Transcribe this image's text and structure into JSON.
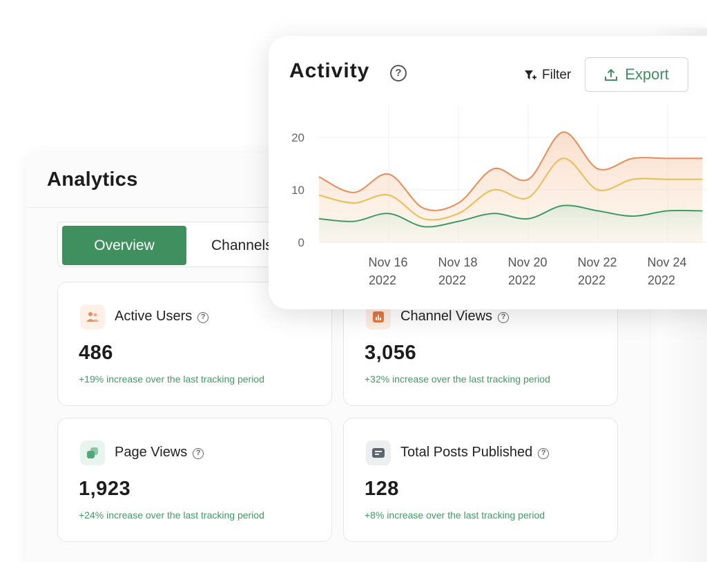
{
  "analytics": {
    "title": "Analytics",
    "tabs": [
      {
        "label": "Overview",
        "active": true
      },
      {
        "label": "Channels",
        "active": false
      }
    ]
  },
  "metrics": [
    {
      "label": "Active Users",
      "value": "486",
      "change": "+19% increase over the last tracking period",
      "icon": "users-icon",
      "icon_color": "#e58f5b",
      "icon_bg": "#fdf0e7"
    },
    {
      "label": "Channel Views",
      "value": "3,056",
      "change": "+32% increase over the last tracking period",
      "icon": "bar-chart-icon",
      "icon_color": "#e8773f",
      "icon_bg": "#fdeee4"
    },
    {
      "label": "Page Views",
      "value": "1,923",
      "change": "+24% increase over the last tracking period",
      "icon": "pages-icon",
      "icon_color": "#52a77a",
      "icon_bg": "#e8f5ee"
    },
    {
      "label": "Total Posts Published",
      "value": "128",
      "change": "+8% increase over the last tracking period",
      "icon": "document-icon",
      "icon_color": "#5c6570",
      "icon_bg": "#eceef0"
    }
  ],
  "activity": {
    "title": "Activity",
    "help": "?",
    "filter_label": "Filter",
    "export_label": "Export"
  },
  "colors": {
    "accent": "#3f8f5f",
    "positive": "#3f9a63",
    "series_top": "#e58c57",
    "series_mid": "#e9bd52",
    "series_low": "#3f9a63"
  },
  "chart_data": {
    "type": "area",
    "x": [
      "Nov 14 2022",
      "Nov 15 2022",
      "Nov 16 2022",
      "Nov 17 2022",
      "Nov 18 2022",
      "Nov 19 2022",
      "Nov 20 2022",
      "Nov 21 2022",
      "Nov 22 2022",
      "Nov 23 2022",
      "Nov 24 2022",
      "Nov 25 2022"
    ],
    "tick_labels": [
      [
        "Nov 16",
        "2022"
      ],
      [
        "Nov 18",
        "2022"
      ],
      [
        "Nov 20",
        "2022"
      ],
      [
        "Nov 22",
        "2022"
      ],
      [
        "Nov 24",
        "2022"
      ]
    ],
    "series": [
      {
        "values": [
          12.5,
          9.5,
          13.0,
          6.5,
          7.5,
          14.0,
          12.0,
          21.0,
          14.0,
          16.0,
          16.0,
          16.0
        ]
      },
      {
        "values": [
          9.0,
          7.5,
          9.0,
          4.5,
          5.5,
          10.0,
          8.5,
          16.0,
          10.0,
          12.0,
          12.0,
          12.0
        ]
      },
      {
        "values": [
          4.5,
          4.0,
          5.5,
          3.0,
          4.0,
          5.5,
          4.5,
          7.0,
          6.0,
          5.0,
          6.0,
          6.0
        ]
      }
    ],
    "yticks": [
      0,
      10,
      20
    ],
    "ylim": [
      0,
      25
    ],
    "grid": true
  }
}
